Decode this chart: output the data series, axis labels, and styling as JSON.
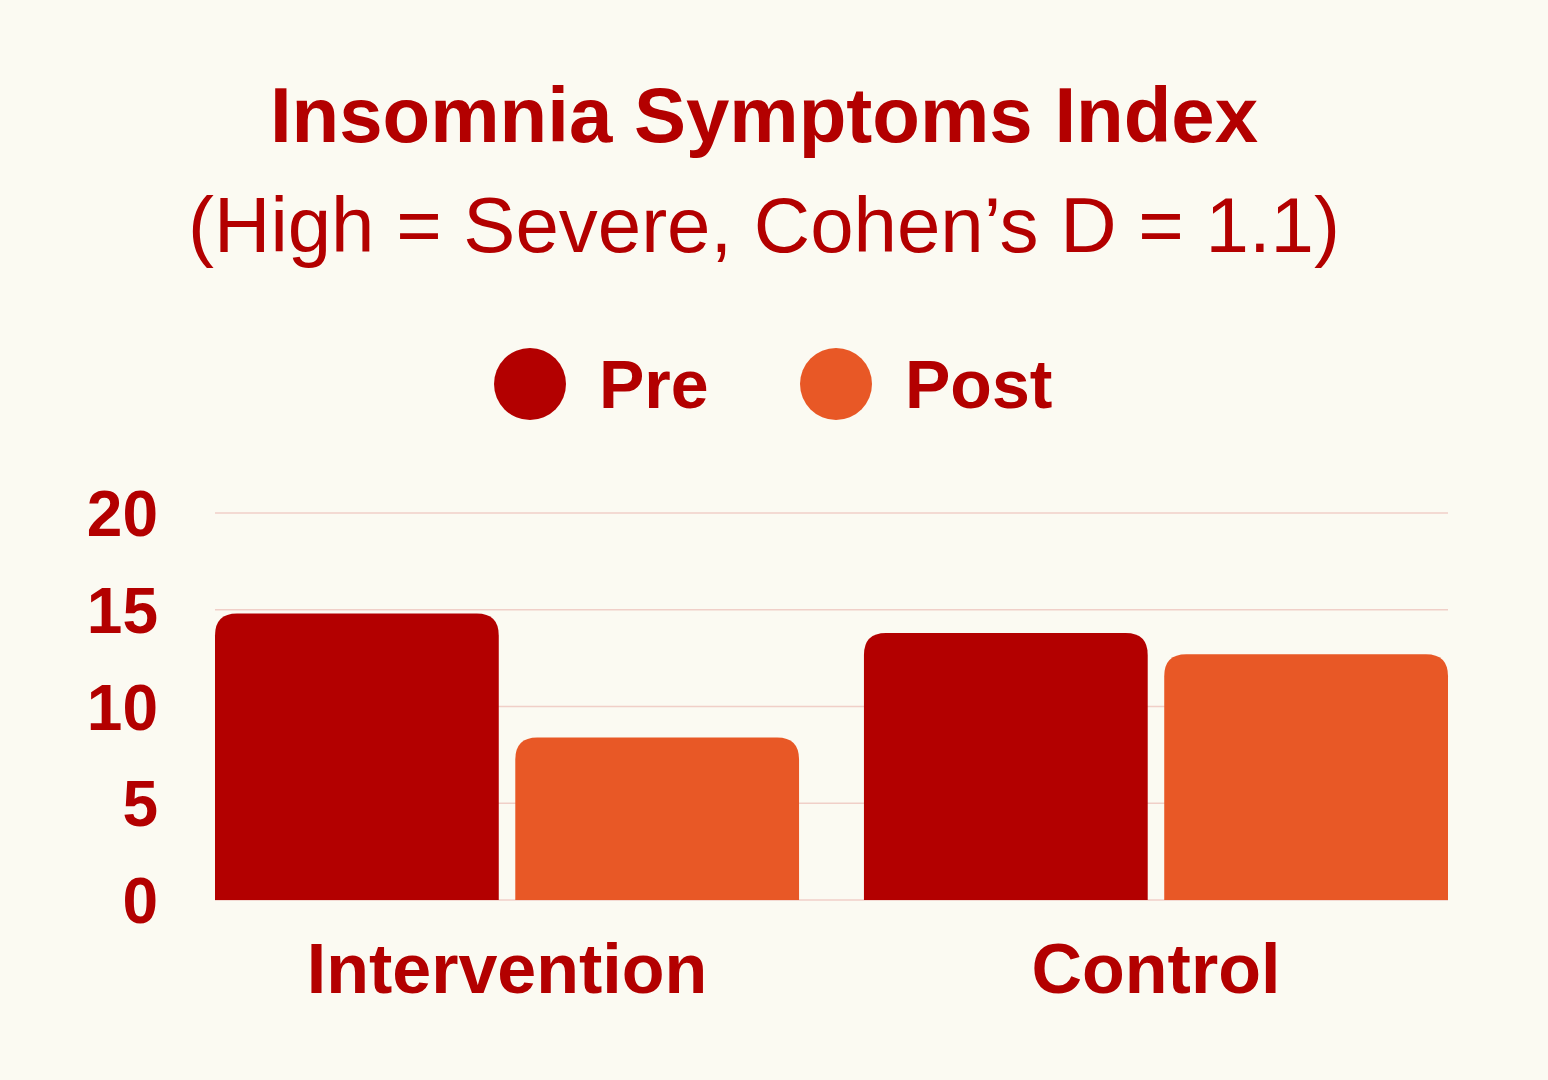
{
  "chart_data": {
    "type": "bar",
    "title": "Insomnia Symptoms Index",
    "subtitle": "(High = Severe, Cohen’s D = 1.1)",
    "categories": [
      "Intervention",
      "Control"
    ],
    "series": [
      {
        "name": "Pre",
        "color": "#b30000",
        "values": [
          14.8,
          13.8
        ]
      },
      {
        "name": "Post",
        "color": "#e85826",
        "values": [
          8.4,
          12.7
        ]
      }
    ],
    "ylim": [
      0,
      20
    ],
    "yticks": [
      0,
      5,
      10,
      15,
      20
    ],
    "grid": "y",
    "legend": "top"
  }
}
